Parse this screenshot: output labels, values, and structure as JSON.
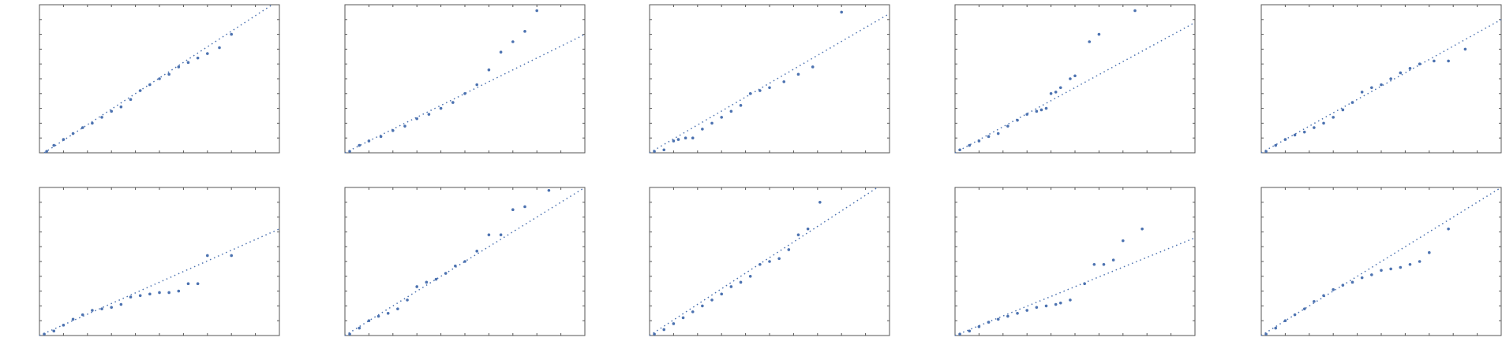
{
  "chart_data": [
    {
      "type": "scatter",
      "xlim": [
        0,
        1
      ],
      "ylim": [
        0,
        1
      ],
      "xticks": [
        0,
        0.1,
        0.2,
        0.3,
        0.4,
        0.5,
        0.6,
        0.7,
        0.8,
        0.9,
        1
      ],
      "yticks": [
        0,
        0.1,
        0.2,
        0.3,
        0.4,
        0.5,
        0.6,
        0.7,
        0.8,
        0.9,
        1
      ],
      "color": "#4c72b0",
      "x": [
        0.03,
        0.06,
        0.1,
        0.14,
        0.18,
        0.22,
        0.26,
        0.3,
        0.34,
        0.38,
        0.42,
        0.46,
        0.5,
        0.54,
        0.58,
        0.62,
        0.66,
        0.7,
        0.75,
        0.8
      ],
      "values": [
        0.01,
        0.05,
        0.09,
        0.13,
        0.17,
        0.2,
        0.24,
        0.28,
        0.31,
        0.36,
        0.42,
        0.46,
        0.5,
        0.53,
        0.58,
        0.61,
        0.64,
        0.67,
        0.71,
        0.8
      ],
      "reference": {
        "x": [
          0.02,
          0.97
        ],
        "y": [
          0,
          1
        ]
      }
    },
    {
      "type": "scatter",
      "xlim": [
        0,
        1
      ],
      "ylim": [
        0,
        1
      ],
      "xticks": [
        0,
        0.1,
        0.2,
        0.3,
        0.4,
        0.5,
        0.6,
        0.7,
        0.8,
        0.9,
        1
      ],
      "yticks": [
        0,
        0.1,
        0.2,
        0.3,
        0.4,
        0.5,
        0.6,
        0.7,
        0.8,
        0.9,
        1
      ],
      "color": "#4c72b0",
      "x": [
        0.02,
        0.06,
        0.1,
        0.15,
        0.2,
        0.25,
        0.3,
        0.35,
        0.4,
        0.45,
        0.5,
        0.55,
        0.6,
        0.65,
        0.7,
        0.75,
        0.8
      ],
      "values": [
        0.01,
        0.05,
        0.08,
        0.11,
        0.15,
        0.18,
        0.23,
        0.26,
        0.3,
        0.34,
        0.4,
        0.46,
        0.56,
        0.68,
        0.75,
        0.82,
        0.96
      ],
      "reference": {
        "x": [
          0,
          1
        ],
        "y": [
          0,
          0.8
        ]
      }
    },
    {
      "type": "scatter",
      "xlim": [
        0,
        1
      ],
      "ylim": [
        0,
        1
      ],
      "xticks": [
        0,
        0.1,
        0.2,
        0.3,
        0.4,
        0.5,
        0.6,
        0.7,
        0.8,
        0.9,
        1
      ],
      "yticks": [
        0,
        0.1,
        0.2,
        0.3,
        0.4,
        0.5,
        0.6,
        0.7,
        0.8,
        0.9,
        1
      ],
      "color": "#4c72b0",
      "x": [
        0.02,
        0.06,
        0.1,
        0.12,
        0.15,
        0.18,
        0.22,
        0.26,
        0.3,
        0.34,
        0.38,
        0.42,
        0.46,
        0.5,
        0.56,
        0.62,
        0.68,
        0.8
      ],
      "values": [
        0.01,
        0.02,
        0.08,
        0.09,
        0.1,
        0.1,
        0.16,
        0.2,
        0.24,
        0.28,
        0.32,
        0.4,
        0.42,
        0.44,
        0.48,
        0.53,
        0.58,
        0.95
      ],
      "reference": {
        "x": [
          0,
          1
        ],
        "y": [
          0,
          0.94
        ]
      }
    },
    {
      "type": "scatter",
      "xlim": [
        0,
        1
      ],
      "ylim": [
        0,
        1
      ],
      "xticks": [
        0,
        0.1,
        0.2,
        0.3,
        0.4,
        0.5,
        0.6,
        0.7,
        0.8,
        0.9,
        1
      ],
      "yticks": [
        0,
        0.1,
        0.2,
        0.3,
        0.4,
        0.5,
        0.6,
        0.7,
        0.8,
        0.9,
        1
      ],
      "color": "#4c72b0",
      "x": [
        0.02,
        0.06,
        0.1,
        0.14,
        0.18,
        0.22,
        0.26,
        0.3,
        0.34,
        0.36,
        0.38,
        0.4,
        0.42,
        0.44,
        0.48,
        0.5,
        0.56,
        0.6,
        0.75
      ],
      "values": [
        0.02,
        0.05,
        0.08,
        0.11,
        0.13,
        0.18,
        0.22,
        0.26,
        0.28,
        0.29,
        0.3,
        0.4,
        0.41,
        0.44,
        0.5,
        0.52,
        0.75,
        0.8,
        0.96
      ],
      "reference": {
        "x": [
          0,
          1
        ],
        "y": [
          0,
          0.88
        ]
      }
    },
    {
      "type": "scatter",
      "xlim": [
        0,
        1
      ],
      "ylim": [
        0,
        1
      ],
      "xticks": [
        0,
        0.1,
        0.2,
        0.3,
        0.4,
        0.5,
        0.6,
        0.7,
        0.8,
        0.9,
        1
      ],
      "yticks": [
        0,
        0.1,
        0.2,
        0.3,
        0.4,
        0.5,
        0.6,
        0.7,
        0.8,
        0.9,
        1
      ],
      "color": "#4c72b0",
      "x": [
        0.02,
        0.06,
        0.1,
        0.14,
        0.18,
        0.22,
        0.26,
        0.3,
        0.34,
        0.38,
        0.42,
        0.46,
        0.5,
        0.54,
        0.58,
        0.62,
        0.66,
        0.72,
        0.78,
        0.85
      ],
      "values": [
        0.01,
        0.05,
        0.09,
        0.12,
        0.14,
        0.17,
        0.2,
        0.24,
        0.29,
        0.34,
        0.41,
        0.44,
        0.46,
        0.5,
        0.54,
        0.57,
        0.6,
        0.62,
        0.62,
        0.7
      ],
      "reference": {
        "x": [
          0,
          1
        ],
        "y": [
          0,
          0.9
        ]
      }
    },
    {
      "type": "scatter",
      "xlim": [
        0,
        1
      ],
      "ylim": [
        0,
        1
      ],
      "xticks": [
        0,
        0.1,
        0.2,
        0.3,
        0.4,
        0.5,
        0.6,
        0.7,
        0.8,
        0.9,
        1
      ],
      "yticks": [
        0,
        0.1,
        0.2,
        0.3,
        0.4,
        0.5,
        0.6,
        0.7,
        0.8,
        0.9,
        1
      ],
      "color": "#4c72b0",
      "x": [
        0.02,
        0.06,
        0.1,
        0.14,
        0.18,
        0.22,
        0.26,
        0.3,
        0.34,
        0.38,
        0.42,
        0.46,
        0.5,
        0.54,
        0.58,
        0.62,
        0.66,
        0.7,
        0.8
      ],
      "values": [
        0.01,
        0.03,
        0.07,
        0.11,
        0.14,
        0.17,
        0.18,
        0.19,
        0.21,
        0.26,
        0.27,
        0.28,
        0.29,
        0.29,
        0.3,
        0.35,
        0.35,
        0.54,
        0.54
      ],
      "reference": {
        "x": [
          0,
          1
        ],
        "y": [
          0,
          0.72
        ]
      }
    },
    {
      "type": "scatter",
      "xlim": [
        0,
        1
      ],
      "ylim": [
        0,
        1
      ],
      "xticks": [
        0,
        0.1,
        0.2,
        0.3,
        0.4,
        0.5,
        0.6,
        0.7,
        0.8,
        0.9,
        1
      ],
      "yticks": [
        0,
        0.1,
        0.2,
        0.3,
        0.4,
        0.5,
        0.6,
        0.7,
        0.8,
        0.9,
        1
      ],
      "color": "#4c72b0",
      "x": [
        0.02,
        0.06,
        0.1,
        0.14,
        0.18,
        0.22,
        0.26,
        0.3,
        0.34,
        0.38,
        0.42,
        0.46,
        0.5,
        0.55,
        0.6,
        0.65,
        0.7,
        0.75,
        0.85
      ],
      "values": [
        0.01,
        0.05,
        0.1,
        0.13,
        0.15,
        0.18,
        0.24,
        0.33,
        0.36,
        0.38,
        0.42,
        0.47,
        0.5,
        0.57,
        0.68,
        0.68,
        0.85,
        0.87,
        0.98
      ],
      "reference": {
        "x": [
          0,
          1
        ],
        "y": [
          0,
          1
        ]
      }
    },
    {
      "type": "scatter",
      "xlim": [
        0,
        1
      ],
      "ylim": [
        0,
        1
      ],
      "xticks": [
        0,
        0.1,
        0.2,
        0.3,
        0.4,
        0.5,
        0.6,
        0.7,
        0.8,
        0.9,
        1
      ],
      "yticks": [
        0,
        0.1,
        0.2,
        0.3,
        0.4,
        0.5,
        0.6,
        0.7,
        0.8,
        0.9,
        1
      ],
      "color": "#4c72b0",
      "x": [
        0.02,
        0.06,
        0.1,
        0.14,
        0.18,
        0.22,
        0.26,
        0.3,
        0.34,
        0.38,
        0.42,
        0.46,
        0.5,
        0.54,
        0.58,
        0.62,
        0.66,
        0.71
      ],
      "values": [
        0.01,
        0.04,
        0.08,
        0.12,
        0.16,
        0.2,
        0.24,
        0.28,
        0.33,
        0.36,
        0.4,
        0.48,
        0.5,
        0.52,
        0.58,
        0.68,
        0.72,
        0.9
      ],
      "reference": {
        "x": [
          0,
          0.95
        ],
        "y": [
          0,
          1
        ]
      }
    },
    {
      "type": "scatter",
      "xlim": [
        0,
        1
      ],
      "ylim": [
        0,
        1
      ],
      "xticks": [
        0,
        0.1,
        0.2,
        0.3,
        0.4,
        0.5,
        0.6,
        0.7,
        0.8,
        0.9,
        1
      ],
      "yticks": [
        0,
        0.1,
        0.2,
        0.3,
        0.4,
        0.5,
        0.6,
        0.7,
        0.8,
        0.9,
        1
      ],
      "color": "#4c72b0",
      "x": [
        0.02,
        0.06,
        0.1,
        0.14,
        0.18,
        0.22,
        0.26,
        0.3,
        0.34,
        0.38,
        0.42,
        0.44,
        0.48,
        0.54,
        0.58,
        0.62,
        0.66,
        0.7,
        0.78
      ],
      "values": [
        0.01,
        0.03,
        0.06,
        0.09,
        0.11,
        0.13,
        0.15,
        0.17,
        0.19,
        0.2,
        0.21,
        0.22,
        0.24,
        0.35,
        0.48,
        0.48,
        0.51,
        0.64,
        0.72
      ],
      "reference": {
        "x": [
          0,
          1
        ],
        "y": [
          0,
          0.66
        ]
      }
    },
    {
      "type": "scatter",
      "xlim": [
        0,
        1
      ],
      "ylim": [
        0,
        1
      ],
      "xticks": [
        0,
        0.1,
        0.2,
        0.3,
        0.4,
        0.5,
        0.6,
        0.7,
        0.8,
        0.9,
        1
      ],
      "yticks": [
        0,
        0.1,
        0.2,
        0.3,
        0.4,
        0.5,
        0.6,
        0.7,
        0.8,
        0.9,
        1
      ],
      "color": "#4c72b0",
      "x": [
        0.02,
        0.06,
        0.1,
        0.14,
        0.18,
        0.22,
        0.26,
        0.3,
        0.34,
        0.38,
        0.42,
        0.46,
        0.5,
        0.54,
        0.58,
        0.62,
        0.66,
        0.7,
        0.78
      ],
      "values": [
        0.01,
        0.05,
        0.1,
        0.14,
        0.18,
        0.23,
        0.27,
        0.31,
        0.34,
        0.36,
        0.39,
        0.41,
        0.44,
        0.45,
        0.46,
        0.48,
        0.5,
        0.56,
        0.72
      ],
      "reference": {
        "x": [
          0,
          1
        ],
        "y": [
          0,
          1
        ]
      }
    }
  ]
}
